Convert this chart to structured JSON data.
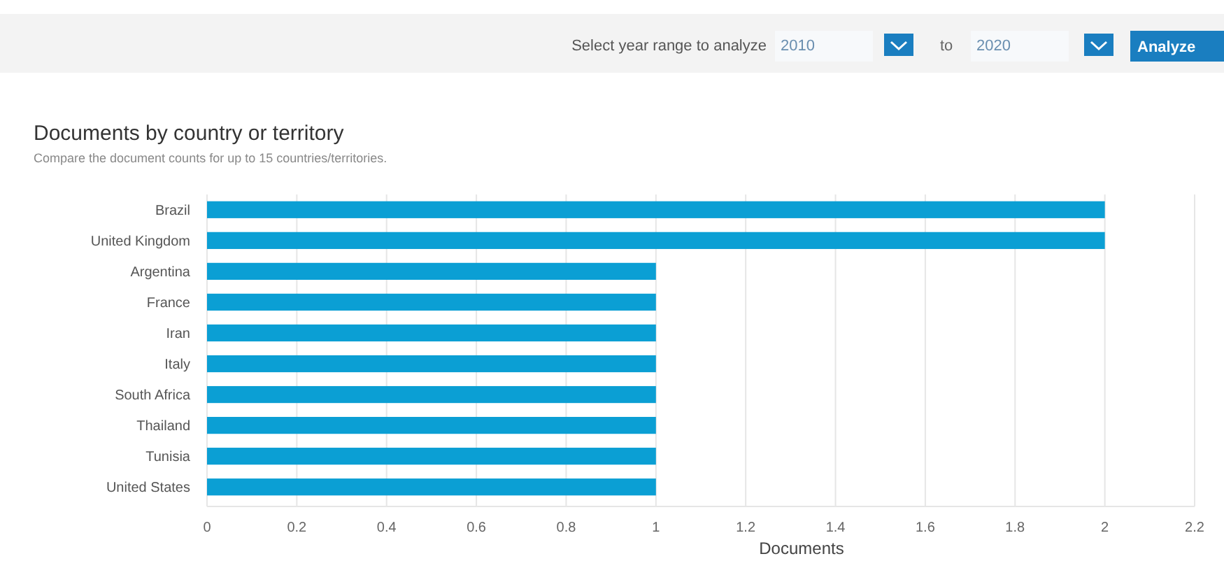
{
  "chart_data": {
    "type": "bar",
    "orientation": "horizontal",
    "title": "Documents by country or territory",
    "subtitle": "Compare the document counts for up to 15 countries/territories.",
    "xlabel": "Documents",
    "categories": [
      "Brazil",
      "United Kingdom",
      "Argentina",
      "France",
      "Iran",
      "Italy",
      "South Africa",
      "Thailand",
      "Tunisia",
      "United States"
    ],
    "values": [
      2,
      2,
      1,
      1,
      1,
      1,
      1,
      1,
      1,
      1
    ],
    "color": "#0b9fd4",
    "xlim": [
      0,
      2.2
    ],
    "xticks": [
      0,
      {
        "value": 0.2,
        "label": "0.2"
      },
      {
        "value": 0.4,
        "label": "0.4"
      },
      {
        "value": 0.6,
        "label": "0.6"
      },
      {
        "value": 0.8,
        "label": "0.8"
      },
      1,
      {
        "value": 1.2,
        "label": "1.2"
      },
      {
        "value": 1.4,
        "label": "1.4"
      },
      {
        "value": 1.6,
        "label": "1.6"
      },
      {
        "value": 1.8,
        "label": "1.8"
      },
      2,
      {
        "value": 2.2,
        "label": "2.2"
      }
    ],
    "grid": "x",
    "annotations": [
      "Select year range to analyze",
      "2010",
      "to",
      "2020",
      "Analyze"
    ]
  }
}
